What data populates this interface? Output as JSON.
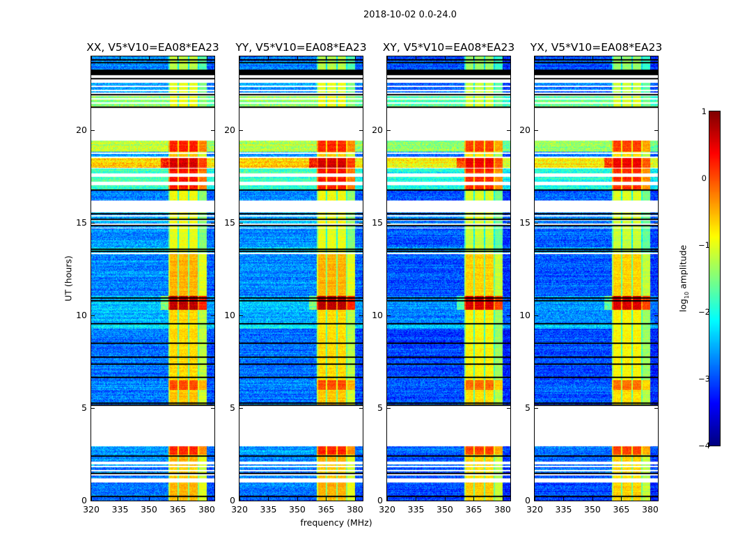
{
  "chart_data": {
    "type": "heatmap",
    "title": "2018-10-02 0.0-24.0",
    "xlabel": "frequency (MHz)",
    "ylabel": "UT (hours)",
    "xlim": [
      320,
      384
    ],
    "ylim": [
      0,
      24
    ],
    "xticks": [
      320,
      335,
      350,
      365,
      380
    ],
    "yticks": [
      0,
      5,
      10,
      15,
      20
    ],
    "colorbar": {
      "label_main": "log",
      "label_sub": "10",
      "label_rest": " amplitude",
      "range": [
        -4,
        1
      ],
      "ticks": [
        1,
        0,
        -1,
        -2,
        -3,
        -4
      ],
      "tick_labels": [
        "1",
        "0",
        "−1",
        "−2",
        "−3",
        "−4"
      ],
      "colormap": "jet"
    },
    "panels": [
      {
        "title": "XX, V5*V10=EA08*EA23",
        "bg_offset": 0.0
      },
      {
        "title": "YY, V5*V10=EA08*EA23",
        "bg_offset": 0.0
      },
      {
        "title": "XY, V5*V10=EA08*EA23",
        "bg_offset": -0.25
      },
      {
        "title": "YX, V5*V10=EA08*EA23",
        "bg_offset": -0.2
      }
    ],
    "rfi_band_mhz": [
      360,
      380
    ],
    "subband_gaps_mhz": [
      365.2,
      370.6,
      375.6
    ],
    "segments_hours": [
      {
        "from": 23.3,
        "to": 24.0,
        "kind": "data",
        "bg": -2.7,
        "rfi": -1.2
      },
      {
        "from": 23.0,
        "to": 23.3,
        "kind": "black"
      },
      {
        "from": 22.65,
        "to": 23.0,
        "kind": "flag"
      },
      {
        "from": 22.05,
        "to": 22.65,
        "kind": "striped",
        "bg": -2.6,
        "rfi": -1.0
      },
      {
        "from": 21.85,
        "to": 22.05,
        "kind": "flag"
      },
      {
        "from": 21.3,
        "to": 21.85,
        "kind": "striped",
        "bg": -1.4,
        "rfi": -0.9
      },
      {
        "from": 19.45,
        "to": 21.3,
        "kind": "flag"
      },
      {
        "from": 18.85,
        "to": 19.45,
        "kind": "data",
        "bg": -1.2,
        "rfi": 0.2
      },
      {
        "from": 18.5,
        "to": 18.85,
        "kind": "striped",
        "bg": -2.6,
        "rfi": -0.6
      },
      {
        "from": 18.0,
        "to": 18.5,
        "kind": "data",
        "bg": -0.6,
        "rfi": 0.6
      },
      {
        "from": 16.8,
        "to": 18.0,
        "kind": "striped-sparse",
        "bg": -1.8,
        "rfi": 0.3
      },
      {
        "from": 16.2,
        "to": 16.8,
        "kind": "data",
        "bg": -2.7,
        "rfi": -0.9
      },
      {
        "from": 15.6,
        "to": 16.2,
        "kind": "flag"
      },
      {
        "from": 14.7,
        "to": 15.6,
        "kind": "striped",
        "bg": -2.5,
        "rfi": -0.9
      },
      {
        "from": 13.7,
        "to": 14.7,
        "kind": "data",
        "bg": -2.7,
        "rfi": -1.0
      },
      {
        "from": 13.3,
        "to": 13.7,
        "kind": "striped",
        "bg": -2.3,
        "rfi": -1.0
      },
      {
        "from": 11.06,
        "to": 13.3,
        "kind": "data",
        "bg": -2.7,
        "rfi": -0.5
      },
      {
        "from": 10.3,
        "to": 11.06,
        "kind": "data",
        "bg": -2.4,
        "rfi": 0.7
      },
      {
        "from": 9.6,
        "to": 10.3,
        "kind": "data",
        "bg": -2.5,
        "rfi": -0.7
      },
      {
        "from": 9.3,
        "to": 9.6,
        "kind": "data",
        "bg": -2.2,
        "rfi": -0.8
      },
      {
        "from": 6.5,
        "to": 9.3,
        "kind": "data",
        "bg": -2.8,
        "rfi": -0.7
      },
      {
        "from": 6.0,
        "to": 6.5,
        "kind": "data",
        "bg": -2.7,
        "rfi": 0.0
      },
      {
        "from": 5.2,
        "to": 6.0,
        "kind": "data",
        "bg": -2.8,
        "rfi": -0.6
      },
      {
        "from": 2.95,
        "to": 5.2,
        "kind": "flag"
      },
      {
        "from": 2.5,
        "to": 2.95,
        "kind": "data",
        "bg": -2.6,
        "rfi": 0.2
      },
      {
        "from": 2.1,
        "to": 2.5,
        "kind": "data",
        "bg": -2.7,
        "rfi": -0.5
      },
      {
        "from": 1.95,
        "to": 2.1,
        "kind": "flag"
      },
      {
        "from": 1.15,
        "to": 1.95,
        "kind": "striped",
        "bg": -2.7,
        "rfi": -0.6
      },
      {
        "from": 0.98,
        "to": 1.15,
        "kind": "flag"
      },
      {
        "from": 0.0,
        "to": 0.98,
        "kind": "data",
        "bg": -2.8,
        "rfi": -0.5
      }
    ],
    "black_lines_hours": [
      23.85,
      23.7,
      22.85,
      21.95,
      21.3,
      16.8,
      15.55,
      15.25,
      14.9,
      13.6,
      13.5,
      11.0,
      10.85,
      9.6,
      8.55,
      7.8,
      7.4,
      6.7,
      5.3,
      5.2,
      2.45,
      1.5,
      0.25
    ]
  }
}
